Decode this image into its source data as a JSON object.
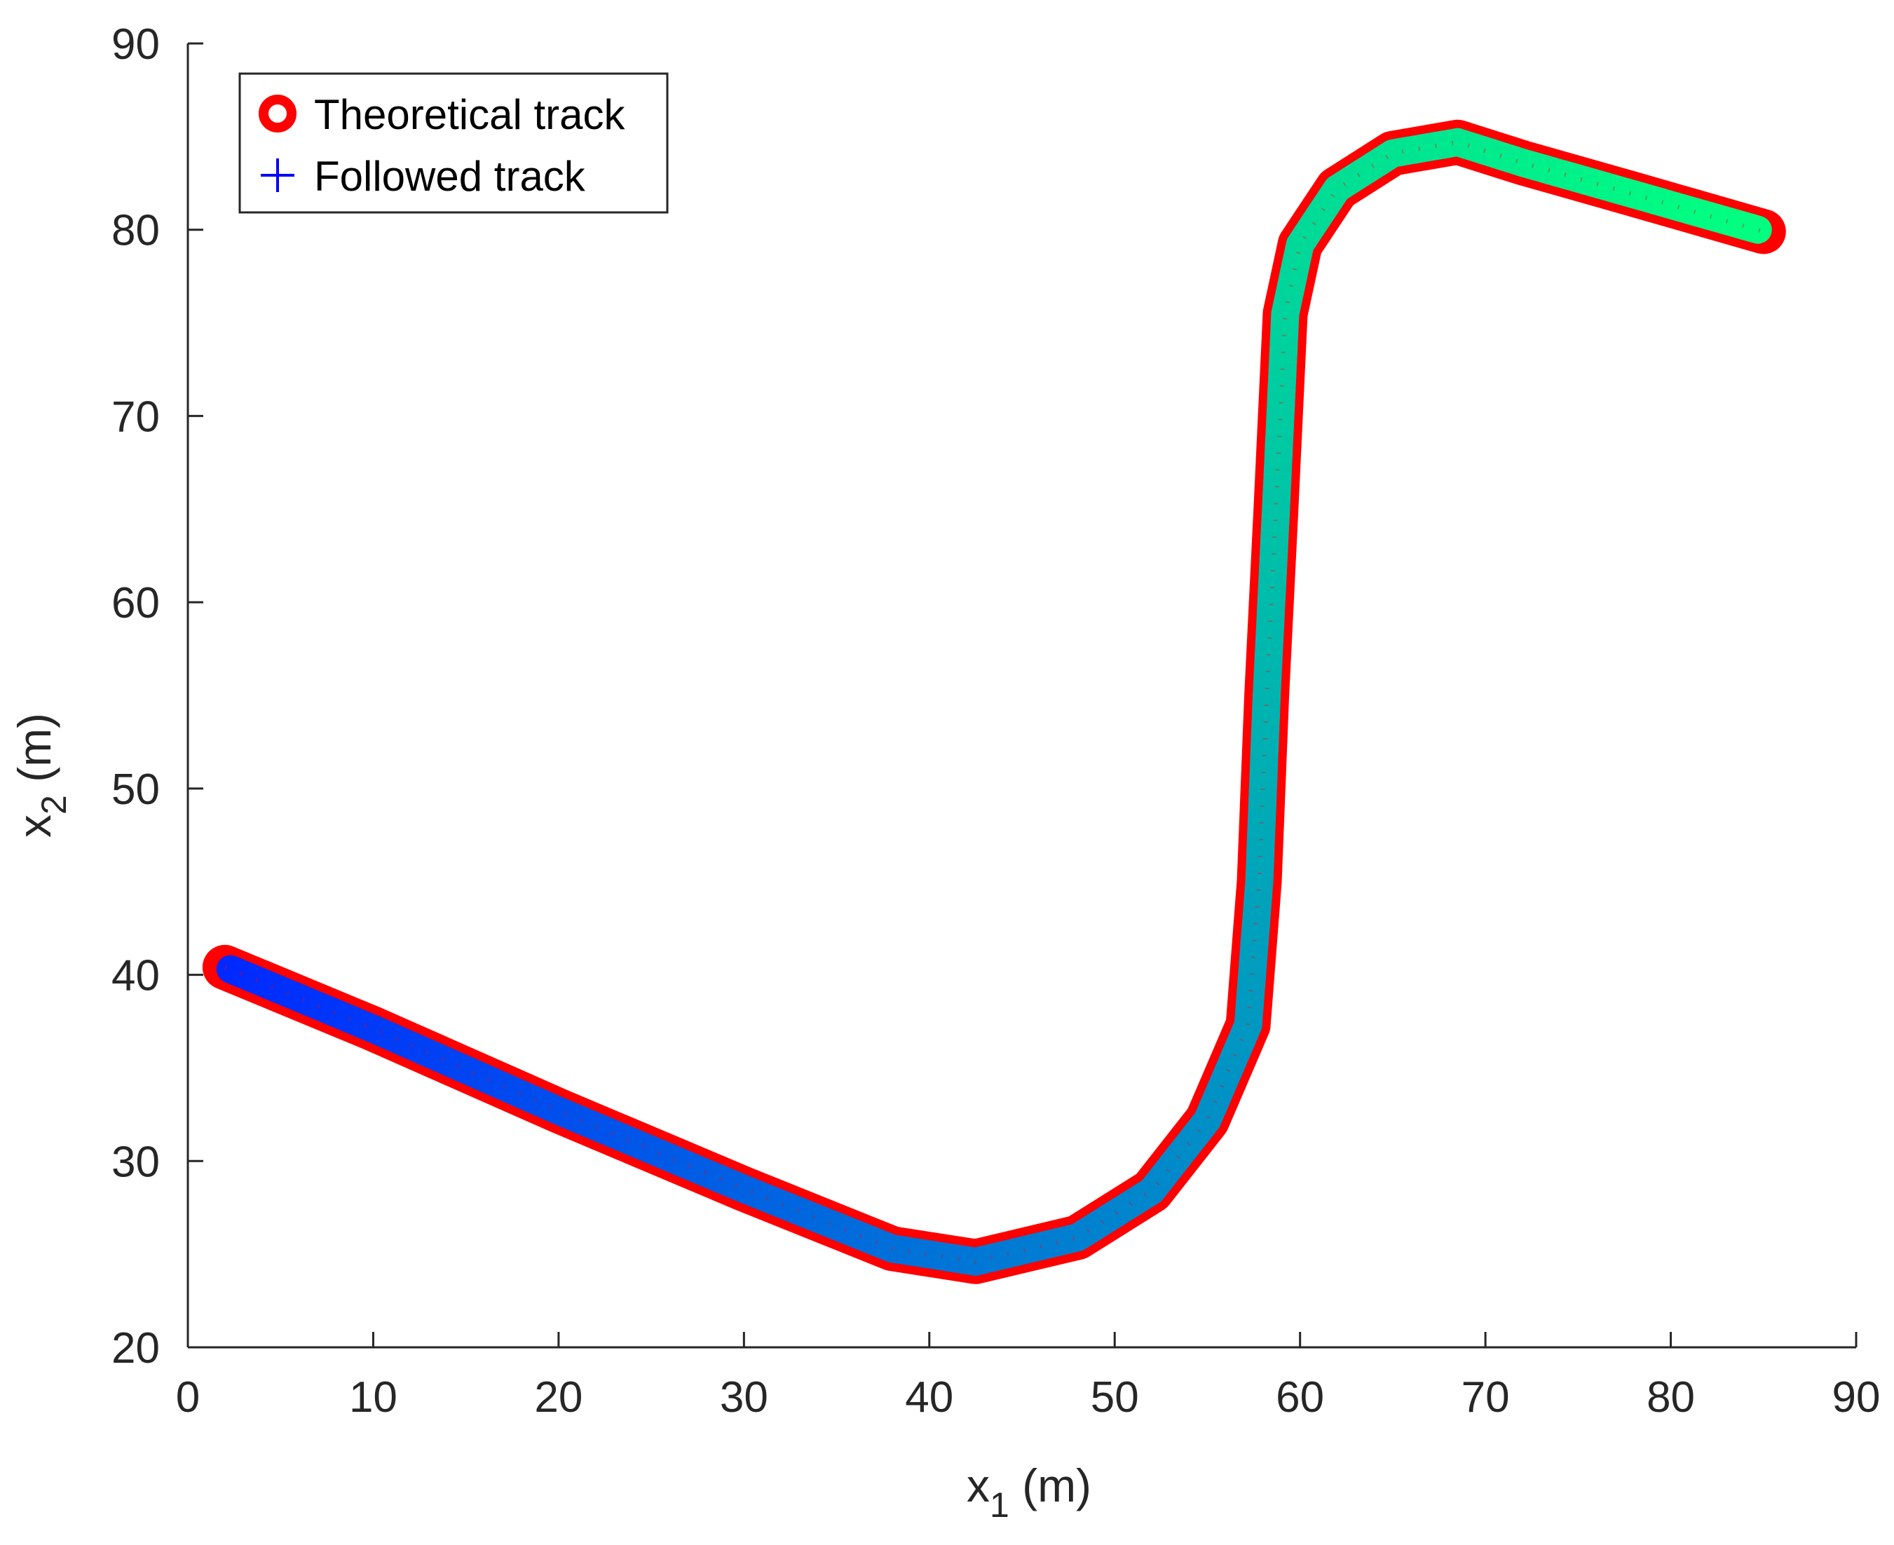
{
  "colors": {
    "theoretical_track": "#ff0000",
    "followed_track_start": "#0000ff",
    "followed_track_end": "#00ff80",
    "axis": "#262626",
    "legend_plus": "#0000ff"
  },
  "chart_data": {
    "type": "line",
    "xlabel": {
      "main": "x",
      "sub": "1",
      "unit": " (m)"
    },
    "ylabel": {
      "main": "x",
      "sub": "2",
      "unit": " (m)"
    },
    "xlim": [
      0,
      90
    ],
    "ylim": [
      20,
      90
    ],
    "xticks": [
      0,
      10,
      20,
      30,
      40,
      50,
      60,
      70,
      80,
      90
    ],
    "yticks": [
      20,
      30,
      40,
      50,
      60,
      70,
      80,
      90
    ],
    "legend_position": "top-left",
    "grid": false,
    "series": [
      {
        "name": "Theoretical track",
        "marker": "o",
        "color": "#ff0000",
        "x": [
          2,
          10,
          20,
          30,
          38,
          42.5,
          48,
          52,
          55,
          57.2,
          57.8,
          58.2,
          58.7,
          59.2,
          60,
          62,
          65,
          68.5,
          72,
          78,
          85
        ],
        "y": [
          40.4,
          37.1,
          32.7,
          28.5,
          25.3,
          24.6,
          25.9,
          28.4,
          32.2,
          37.3,
          45,
          55,
          65,
          75.5,
          79.2,
          82.2,
          84.1,
          84.7,
          83.6,
          81.9,
          79.9
        ]
      },
      {
        "name": "Followed track",
        "marker": "+",
        "color_gradient": [
          "#0000ff",
          "#00ff80"
        ],
        "x": [
          2.3,
          10,
          20,
          30,
          38,
          42.5,
          48,
          52,
          55,
          57.2,
          57.8,
          58.2,
          58.7,
          59.2,
          60,
          62,
          65,
          68.5,
          72,
          78,
          84.7
        ],
        "y": [
          40.3,
          37.1,
          32.7,
          28.5,
          25.3,
          24.6,
          25.9,
          28.4,
          32.2,
          37.3,
          45,
          55,
          65,
          75.5,
          79.2,
          82.2,
          84.1,
          84.7,
          83.6,
          81.9,
          80
        ]
      }
    ]
  }
}
